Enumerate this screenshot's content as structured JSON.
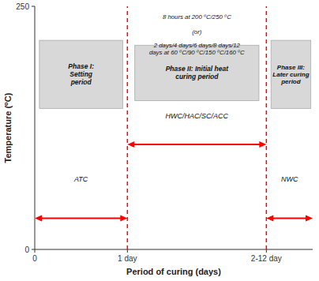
{
  "chart_data": {
    "type": "phases",
    "xlabel": "Period of curing (days)",
    "ylabel": "Temperature (⁰C)",
    "xlim": [
      0,
      3.0
    ],
    "ylim": [
      0,
      250
    ],
    "xticks": [
      0,
      {
        "value": 1,
        "label": "1 day"
      },
      {
        "value": 2.5,
        "label": "2-12 day"
      }
    ],
    "yticks": [
      0,
      250
    ],
    "color": "#ff0000",
    "vlines": [
      1.0,
      2.5
    ],
    "boxes": [
      {
        "text": "Phase I:\nSetting\nperiod",
        "x": [
          0.05,
          0.95
        ],
        "y": [
          145,
          215
        ]
      },
      {
        "text": "Phase II: Initial heat\ncuring period",
        "x": [
          1.08,
          2.42
        ],
        "y": [
          153,
          210
        ]
      },
      {
        "text": "Phase III:\nLater curing\nperiod",
        "x": [
          2.55,
          2.98
        ],
        "y": [
          145,
          215
        ]
      }
    ],
    "arrows": [
      {
        "x": [
          1.0,
          2.5
        ],
        "y": 108
      },
      {
        "x": [
          0.0,
          1.0
        ],
        "y": 32
      },
      {
        "x": [
          2.5,
          3.0
        ],
        "y": 32
      }
    ],
    "annotations": [
      {
        "text": "8 hours at 200 ⁰C/250 ⁰C",
        "x": 1.75,
        "y": 242,
        "anchor": "top"
      },
      {
        "text": "(or)",
        "x": 1.75,
        "y": 227,
        "anchor": "top"
      },
      {
        "text": "2 days/4 days/6 days/8 days/12\ndays at 60 ⁰C/90 ⁰C/150 ⁰C/160 ⁰C",
        "x": 1.75,
        "y": 213,
        "anchor": "top"
      },
      {
        "text": "HWC/HAC/SC/ACC",
        "x": 1.75,
        "y": 137,
        "anchor": "center"
      },
      {
        "text": "ATC",
        "x": 0.5,
        "y": 72,
        "anchor": "center"
      },
      {
        "text": "NWC",
        "x": 2.75,
        "y": 72,
        "anchor": "center"
      }
    ]
  }
}
